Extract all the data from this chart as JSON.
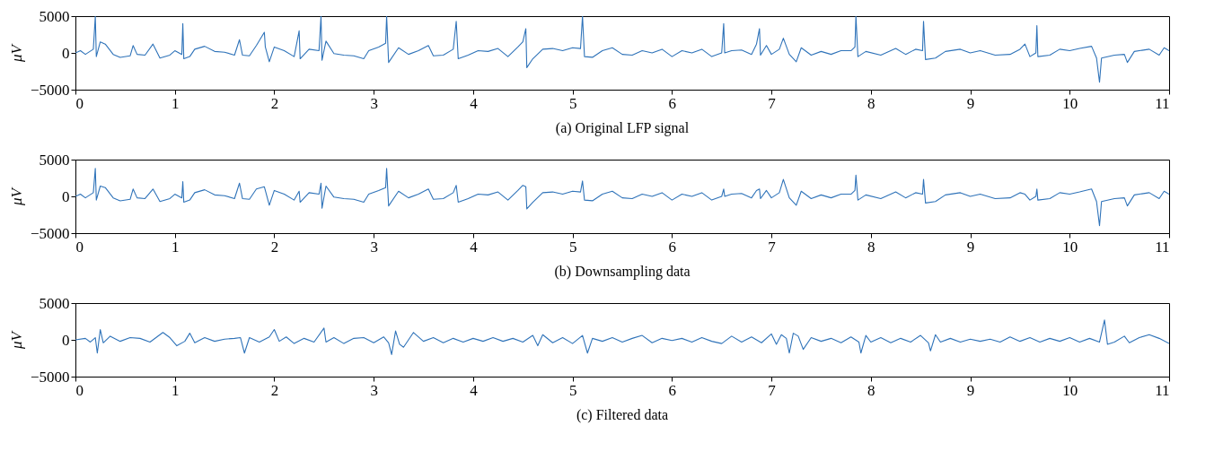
{
  "chart_data": [
    {
      "type": "line",
      "title": "(a) Original LFP signal",
      "ylabel": "μV",
      "xlim": [
        0,
        11
      ],
      "xticks": [
        0,
        1,
        2,
        3,
        4,
        5,
        6,
        7,
        8,
        9,
        10,
        11
      ],
      "ylim": [
        -5000,
        5000
      ],
      "yticks": [
        -5000,
        0,
        5000
      ],
      "grid": false,
      "x": [
        0,
        0.05,
        0.1,
        0.18,
        0.2,
        0.21,
        0.25,
        0.3,
        0.38,
        0.45,
        0.55,
        0.58,
        0.62,
        0.7,
        0.78,
        0.85,
        0.95,
        1.0,
        1.07,
        1.08,
        1.09,
        1.15,
        1.2,
        1.3,
        1.4,
        1.5,
        1.6,
        1.65,
        1.68,
        1.75,
        1.82,
        1.9,
        1.91,
        1.95,
        2.0,
        2.1,
        2.2,
        2.25,
        2.26,
        2.35,
        2.45,
        2.47,
        2.48,
        2.52,
        2.6,
        2.7,
        2.8,
        2.9,
        2.95,
        3.05,
        3.12,
        3.13,
        3.15,
        3.25,
        3.35,
        3.45,
        3.55,
        3.6,
        3.7,
        3.8,
        3.83,
        3.85,
        3.95,
        4.05,
        4.15,
        4.25,
        4.35,
        4.45,
        4.5,
        4.53,
        4.54,
        4.6,
        4.7,
        4.8,
        4.9,
        5.0,
        5.08,
        5.1,
        5.12,
        5.2,
        5.3,
        5.4,
        5.5,
        5.6,
        5.7,
        5.8,
        5.9,
        6.0,
        6.1,
        6.2,
        6.3,
        6.4,
        6.5,
        6.52,
        6.53,
        6.6,
        6.7,
        6.8,
        6.85,
        6.88,
        6.89,
        6.95,
        7.0,
        7.08,
        7.12,
        7.18,
        7.25,
        7.3,
        7.4,
        7.5,
        7.6,
        7.7,
        7.8,
        7.84,
        7.85,
        7.87,
        7.95,
        8.1,
        8.25,
        8.35,
        8.45,
        8.52,
        8.53,
        8.55,
        8.65,
        8.75,
        8.9,
        9.0,
        9.1,
        9.25,
        9.4,
        9.5,
        9.55,
        9.6,
        9.66,
        9.67,
        9.68,
        9.8,
        9.9,
        10.0,
        10.1,
        10.22,
        10.27,
        10.3,
        10.32,
        10.45,
        10.55,
        10.58,
        10.65,
        10.8,
        10.9,
        10.95,
        11
      ],
      "series": [
        {
          "color": "#2f73b9",
          "values": [
            0,
            300,
            -200,
            500,
            5000,
            -500,
            1500,
            1200,
            -200,
            -600,
            -400,
            1000,
            -200,
            -300,
            1200,
            -700,
            -300,
            300,
            -200,
            4000,
            -800,
            -500,
            500,
            900,
            200,
            100,
            -300,
            1800,
            -300,
            -400,
            1000,
            2800,
            800,
            -1200,
            800,
            300,
            -500,
            3000,
            -800,
            500,
            300,
            5000,
            -1000,
            1600,
            -100,
            -300,
            -400,
            -800,
            300,
            800,
            1300,
            5000,
            -1300,
            700,
            -200,
            300,
            1000,
            -400,
            -300,
            500,
            4300,
            -800,
            -300,
            300,
            200,
            600,
            -500,
            800,
            1500,
            3300,
            -2000,
            -800,
            500,
            600,
            300,
            700,
            600,
            5000,
            -500,
            -600,
            300,
            700,
            -200,
            -300,
            300,
            0,
            500,
            -500,
            300,
            0,
            500,
            -500,
            0,
            4000,
            0,
            300,
            400,
            -200,
            1200,
            3300,
            -300,
            1000,
            -200,
            500,
            2000,
            -200,
            -1200,
            700,
            -300,
            200,
            -200,
            300,
            300,
            800,
            5000,
            -500,
            200,
            -300,
            600,
            -200,
            500,
            300,
            4300,
            -900,
            -700,
            200,
            500,
            0,
            300,
            -300,
            -200,
            500,
            1200,
            -500,
            0,
            3700,
            -500,
            -300,
            500,
            300,
            600,
            900,
            -700,
            -4000,
            -700,
            -300,
            -200,
            -1300,
            200,
            500,
            -300,
            700,
            300
          ]
        }
      ]
    },
    {
      "type": "line",
      "title": "(b) Downsampling data",
      "ylabel": "μV",
      "xlim": [
        0,
        11
      ],
      "xticks": [
        0,
        1,
        2,
        3,
        4,
        5,
        6,
        7,
        8,
        9,
        10,
        11
      ],
      "ylim": [
        -5000,
        5000
      ],
      "yticks": [
        -5000,
        0,
        5000
      ],
      "grid": false,
      "x": [
        0,
        0.05,
        0.1,
        0.18,
        0.2,
        0.21,
        0.25,
        0.3,
        0.38,
        0.45,
        0.55,
        0.58,
        0.62,
        0.7,
        0.78,
        0.85,
        0.95,
        1.0,
        1.07,
        1.08,
        1.09,
        1.15,
        1.2,
        1.3,
        1.4,
        1.5,
        1.6,
        1.65,
        1.68,
        1.75,
        1.82,
        1.9,
        1.91,
        1.95,
        2.0,
        2.1,
        2.2,
        2.25,
        2.26,
        2.35,
        2.45,
        2.47,
        2.48,
        2.52,
        2.6,
        2.7,
        2.8,
        2.9,
        2.95,
        3.05,
        3.12,
        3.13,
        3.15,
        3.25,
        3.35,
        3.45,
        3.55,
        3.6,
        3.7,
        3.8,
        3.83,
        3.85,
        3.95,
        4.05,
        4.15,
        4.25,
        4.35,
        4.45,
        4.5,
        4.53,
        4.54,
        4.6,
        4.7,
        4.8,
        4.9,
        5.0,
        5.08,
        5.1,
        5.12,
        5.2,
        5.3,
        5.4,
        5.5,
        5.6,
        5.7,
        5.8,
        5.9,
        6.0,
        6.1,
        6.2,
        6.3,
        6.4,
        6.5,
        6.52,
        6.53,
        6.6,
        6.7,
        6.8,
        6.85,
        6.88,
        6.89,
        6.95,
        7.0,
        7.08,
        7.12,
        7.18,
        7.25,
        7.3,
        7.4,
        7.5,
        7.6,
        7.7,
        7.8,
        7.84,
        7.85,
        7.87,
        7.95,
        8.1,
        8.25,
        8.35,
        8.45,
        8.52,
        8.53,
        8.55,
        8.65,
        8.75,
        8.9,
        9.0,
        9.1,
        9.25,
        9.4,
        9.5,
        9.55,
        9.6,
        9.66,
        9.67,
        9.68,
        9.8,
        9.9,
        10.0,
        10.1,
        10.22,
        10.27,
        10.3,
        10.32,
        10.45,
        10.55,
        10.58,
        10.65,
        10.8,
        10.9,
        10.95,
        11
      ],
      "series": [
        {
          "color": "#2f73b9",
          "values": [
            0,
            300,
            -200,
            500,
            3800,
            -500,
            1400,
            1200,
            -200,
            -600,
            -400,
            1000,
            -200,
            -300,
            1000,
            -700,
            -300,
            300,
            -200,
            2000,
            -800,
            -500,
            500,
            900,
            200,
            100,
            -300,
            1800,
            -300,
            -400,
            1000,
            1300,
            800,
            -1200,
            800,
            300,
            -500,
            700,
            -800,
            500,
            300,
            1800,
            -1600,
            1400,
            -100,
            -300,
            -400,
            -800,
            300,
            800,
            1200,
            3800,
            -1300,
            700,
            -200,
            300,
            1000,
            -400,
            -300,
            500,
            1500,
            -800,
            -300,
            300,
            200,
            600,
            -500,
            800,
            1500,
            1300,
            -1700,
            -800,
            500,
            600,
            300,
            700,
            600,
            2100,
            -500,
            -600,
            300,
            700,
            -200,
            -300,
            300,
            0,
            500,
            -500,
            300,
            0,
            500,
            -500,
            0,
            1000,
            0,
            300,
            400,
            -200,
            800,
            1000,
            -300,
            800,
            -200,
            500,
            2300,
            -200,
            -1200,
            700,
            -300,
            200,
            -200,
            300,
            300,
            800,
            2900,
            -500,
            200,
            -300,
            600,
            -200,
            500,
            300,
            2300,
            -900,
            -700,
            200,
            500,
            0,
            300,
            -300,
            -200,
            500,
            300,
            -500,
            0,
            1000,
            -500,
            -300,
            500,
            300,
            600,
            1000,
            -700,
            -4000,
            -700,
            -300,
            -200,
            -1300,
            200,
            500,
            -300,
            700,
            300
          ]
        }
      ]
    },
    {
      "type": "line",
      "title": "(c) Filtered data",
      "ylabel": "μV",
      "xlim": [
        0,
        11
      ],
      "xticks": [
        0,
        1,
        2,
        3,
        4,
        5,
        6,
        7,
        8,
        9,
        10,
        11
      ],
      "ylim": [
        -5000,
        5000
      ],
      "yticks": [
        -5000,
        0,
        5000
      ],
      "grid": false,
      "x": [
        0,
        0.1,
        0.15,
        0.2,
        0.22,
        0.25,
        0.28,
        0.35,
        0.45,
        0.55,
        0.65,
        0.75,
        0.88,
        0.95,
        1.02,
        1.1,
        1.15,
        1.2,
        1.3,
        1.4,
        1.5,
        1.6,
        1.66,
        1.7,
        1.75,
        1.85,
        1.95,
        2.0,
        2.05,
        2.12,
        2.2,
        2.3,
        2.4,
        2.5,
        2.52,
        2.6,
        2.7,
        2.8,
        2.9,
        3.0,
        3.1,
        3.15,
        3.18,
        3.22,
        3.26,
        3.3,
        3.4,
        3.5,
        3.6,
        3.7,
        3.8,
        3.9,
        4.0,
        4.1,
        4.2,
        4.3,
        4.4,
        4.5,
        4.6,
        4.65,
        4.7,
        4.8,
        4.9,
        5.0,
        5.1,
        5.15,
        5.2,
        5.3,
        5.4,
        5.5,
        5.6,
        5.7,
        5.8,
        5.9,
        6.0,
        6.1,
        6.2,
        6.3,
        6.4,
        6.5,
        6.6,
        6.7,
        6.8,
        6.9,
        7.0,
        7.05,
        7.1,
        7.15,
        7.18,
        7.22,
        7.27,
        7.32,
        7.4,
        7.5,
        7.6,
        7.7,
        7.8,
        7.88,
        7.9,
        7.95,
        8.0,
        8.1,
        8.2,
        8.3,
        8.4,
        8.5,
        8.58,
        8.6,
        8.65,
        8.7,
        8.8,
        8.9,
        9.0,
        9.1,
        9.2,
        9.3,
        9.4,
        9.5,
        9.6,
        9.7,
        9.8,
        9.9,
        10.0,
        10.1,
        10.2,
        10.3,
        10.35,
        10.38,
        10.45,
        10.55,
        10.6,
        10.7,
        10.8,
        10.9,
        11
      ],
      "series": [
        {
          "color": "#2f73b9",
          "values": [
            0,
            200,
            -300,
            300,
            -1800,
            1400,
            -400,
            500,
            -200,
            300,
            200,
            -300,
            1000,
            300,
            -800,
            -200,
            900,
            -400,
            300,
            -200,
            100,
            200,
            300,
            -1800,
            300,
            -300,
            400,
            1400,
            -200,
            400,
            -500,
            200,
            -300,
            1600,
            -300,
            300,
            -500,
            200,
            300,
            -400,
            400,
            -400,
            -2000,
            1200,
            -600,
            -1000,
            1000,
            -200,
            300,
            -400,
            200,
            -300,
            200,
            -200,
            300,
            -200,
            200,
            -300,
            600,
            -800,
            700,
            -400,
            300,
            -500,
            600,
            -1800,
            200,
            -200,
            300,
            -300,
            200,
            600,
            -400,
            200,
            -100,
            200,
            -300,
            300,
            -200,
            -500,
            500,
            -300,
            400,
            -400,
            800,
            -600,
            700,
            200,
            -1800,
            900,
            500,
            -1300,
            300,
            -200,
            200,
            -400,
            400,
            -300,
            -1800,
            600,
            -300,
            300,
            -400,
            200,
            -300,
            600,
            -400,
            -1500,
            700,
            -300,
            200,
            -300,
            100,
            -200,
            100,
            -300,
            400,
            -200,
            300,
            -300,
            200,
            -200,
            300,
            -300,
            200,
            -300,
            2700,
            -600,
            -300,
            500,
            -400,
            300,
            700,
            200,
            -500
          ]
        }
      ]
    }
  ]
}
